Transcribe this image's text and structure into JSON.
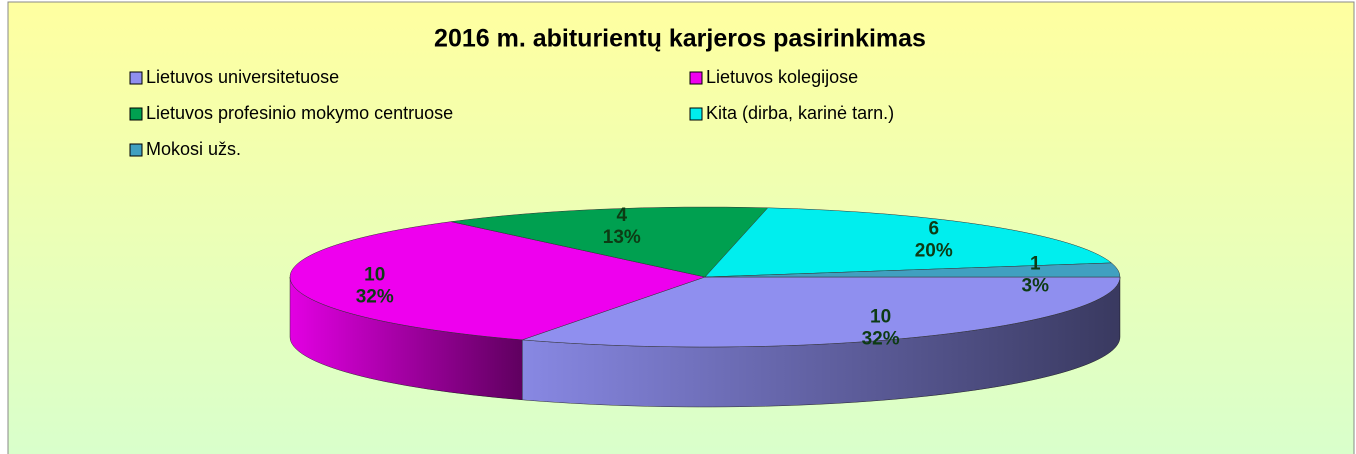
{
  "chart_data": {
    "type": "pie3d",
    "title": "2016 m.  abiturientų karjeros pasirinkimas",
    "categories": [
      "Lietuvos  universitetuose",
      "Lietuvos kolegijose",
      "Lietuvos profesinio mokymo centruose",
      "Kita (dirba, karinė tarn.)",
      "Mokosi užs."
    ],
    "values": [
      10,
      10,
      4,
      6,
      1
    ],
    "percent_labels": [
      "32%",
      "32%",
      "13%",
      "20%",
      "3%"
    ],
    "colors": [
      "#8f8fef",
      "#ee00ee",
      "#00a050",
      "#00eeee",
      "#40a0c0"
    ],
    "legend": "top"
  }
}
